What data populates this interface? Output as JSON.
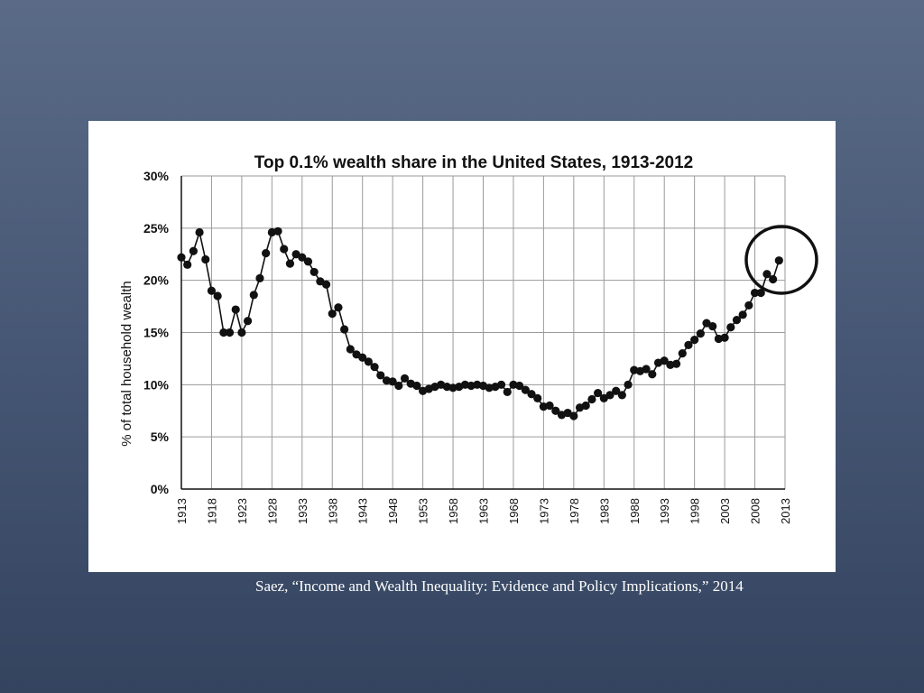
{
  "caption": "Saez, “Income and Wealth Inequality:  Evidence and Policy Implications,” 2014",
  "chart_data": {
    "type": "line",
    "title": "Top 0.1% wealth share in the United States, 1913-2012",
    "xlabel": "",
    "ylabel": "% of total household wealth",
    "xlim": [
      1913,
      2013
    ],
    "ylim": [
      0,
      30
    ],
    "x_ticks": [
      "1913",
      "1918",
      "1923",
      "1928",
      "1933",
      "1938",
      "1943",
      "1948",
      "1953",
      "1958",
      "1963",
      "1968",
      "1973",
      "1978",
      "1983",
      "1988",
      "1993",
      "1998",
      "2003",
      "2008",
      "2013"
    ],
    "y_ticks": [
      "0%",
      "5%",
      "10%",
      "15%",
      "20%",
      "25%",
      "30%"
    ],
    "y_tick_values": [
      0,
      5,
      10,
      15,
      20,
      25,
      30
    ],
    "grid": true,
    "annotation": "circle around 2008-2012 values",
    "series": [
      {
        "name": "Top 0.1% wealth share",
        "x": [
          1913,
          1914,
          1915,
          1916,
          1917,
          1918,
          1919,
          1920,
          1921,
          1922,
          1923,
          1924,
          1925,
          1926,
          1927,
          1928,
          1929,
          1930,
          1931,
          1932,
          1933,
          1934,
          1935,
          1936,
          1937,
          1938,
          1939,
          1940,
          1941,
          1942,
          1943,
          1944,
          1945,
          1946,
          1947,
          1948,
          1949,
          1950,
          1951,
          1952,
          1953,
          1954,
          1955,
          1956,
          1957,
          1958,
          1959,
          1960,
          1961,
          1962,
          1963,
          1964,
          1965,
          1966,
          1967,
          1968,
          1969,
          1970,
          1971,
          1972,
          1973,
          1974,
          1975,
          1976,
          1977,
          1978,
          1979,
          1980,
          1981,
          1982,
          1983,
          1984,
          1985,
          1986,
          1987,
          1988,
          1989,
          1990,
          1991,
          1992,
          1993,
          1994,
          1995,
          1996,
          1997,
          1998,
          1999,
          2000,
          2001,
          2002,
          2003,
          2004,
          2005,
          2006,
          2007,
          2008,
          2009,
          2010,
          2011,
          2012
        ],
        "values": [
          22.2,
          21.5,
          22.8,
          24.6,
          22.0,
          19.0,
          18.5,
          15.0,
          15.0,
          17.2,
          15.0,
          16.1,
          18.6,
          20.2,
          22.6,
          24.6,
          24.7,
          23.0,
          21.6,
          22.5,
          22.2,
          21.8,
          20.8,
          19.9,
          19.6,
          16.8,
          17.4,
          15.3,
          13.4,
          12.9,
          12.6,
          12.2,
          11.7,
          10.9,
          10.4,
          10.3,
          9.9,
          10.6,
          10.1,
          9.9,
          9.4,
          9.6,
          9.8,
          10.0,
          9.8,
          9.7,
          9.8,
          10.0,
          9.9,
          10.0,
          9.9,
          9.7,
          9.8,
          10.0,
          9.3,
          10.0,
          9.9,
          9.5,
          9.1,
          8.7,
          7.9,
          8.0,
          7.5,
          7.1,
          7.3,
          7.0,
          7.8,
          8.0,
          8.6,
          9.2,
          8.7,
          9.0,
          9.4,
          9.0,
          10.0,
          11.4,
          11.3,
          11.5,
          11.0,
          12.1,
          12.3,
          11.9,
          12.0,
          13.0,
          13.8,
          14.3,
          14.9,
          15.9,
          15.6,
          14.4,
          14.5,
          15.5,
          16.2,
          16.7,
          17.6,
          18.8,
          18.8,
          20.6,
          20.1,
          21.9
        ]
      }
    ]
  }
}
